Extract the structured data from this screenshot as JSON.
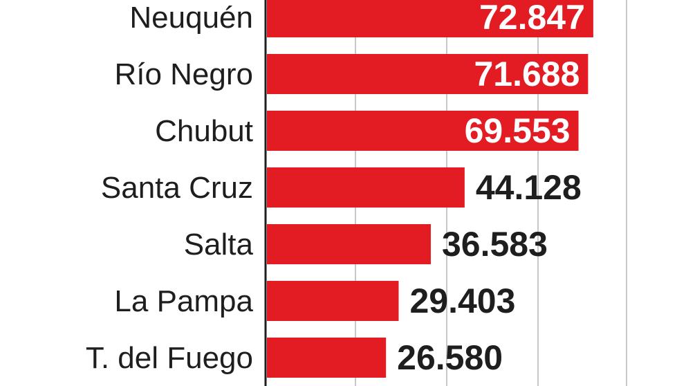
{
  "chart_data": {
    "type": "bar",
    "orientation": "horizontal",
    "categories": [
      "Neuquén",
      "Río Negro",
      "Chubut",
      "Santa Cruz",
      "Salta",
      "La Pampa",
      "T. del Fuego"
    ],
    "values": [
      72847,
      71688,
      69553,
      44128,
      36583,
      29403,
      26580
    ],
    "value_labels": [
      "72.847",
      "71.688",
      "69.553",
      "44.128",
      "36.583",
      "29.403",
      "26.580"
    ],
    "title": "",
    "xlabel": "",
    "ylabel": "",
    "xlim": [
      0,
      80000
    ],
    "grid": true,
    "bar_color": "#e31b23",
    "label_inside_color": "#ffffff",
    "label_outside_color": "#1e1e1e"
  }
}
